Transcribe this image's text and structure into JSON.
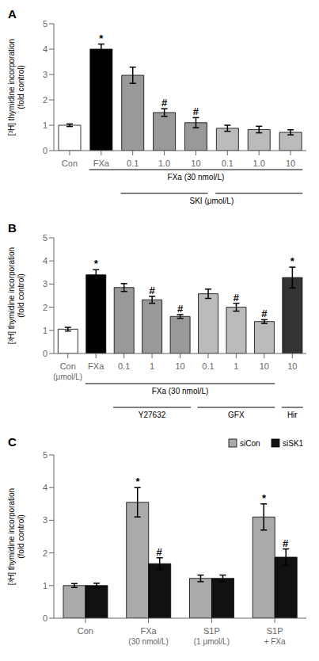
{
  "chart_data": [
    {
      "type": "bar",
      "title": "A",
      "ylabel": "[³H] thymidine incorporation\n(fold control)",
      "categories": [
        "Con",
        "FXa",
        "0.1",
        "1.0",
        "10",
        "0.1",
        "1.0",
        "10"
      ],
      "values": [
        1.0,
        4.0,
        2.97,
        1.5,
        1.1,
        0.88,
        0.83,
        0.72
      ],
      "errors": [
        0.05,
        0.2,
        0.32,
        0.15,
        0.2,
        0.12,
        0.13,
        0.1
      ],
      "colors": [
        "#ffffff",
        "#000000",
        "#999999",
        "#999999",
        "#999999",
        "#bbbbbb",
        "#bbbbbb",
        "#bbbbbb"
      ],
      "ylim": [
        0,
        5
      ],
      "yticks": [
        0,
        1,
        2,
        3,
        4,
        5
      ],
      "annotations": [
        {
          "index": 1,
          "text": "*"
        },
        {
          "index": 3,
          "text": "#"
        },
        {
          "index": 4,
          "text": "#"
        }
      ],
      "bracket_rows": [
        [
          {
            "label": "FXa (30 nmol/L)",
            "spans": [
              [
                1,
                7
              ]
            ]
          }
        ],
        [
          {
            "label": "SKI (μmol/L)",
            "spans": [
              [
                2,
                4
              ],
              [
                5,
                7
              ]
            ]
          }
        ]
      ]
    },
    {
      "type": "bar",
      "title": "B",
      "ylabel": "[³H] thymidine incorporation\n(fold control)",
      "categories": [
        "Con",
        "FXa",
        "0.1",
        "1",
        "10",
        "0.1",
        "1",
        "10",
        "10"
      ],
      "sublabels": [
        "(μmol/L)",
        null,
        null,
        null,
        null,
        null,
        null,
        null,
        null
      ],
      "values": [
        1.05,
        3.4,
        2.85,
        2.32,
        1.6,
        2.58,
        2.0,
        1.38,
        3.28
      ],
      "errors": [
        0.08,
        0.22,
        0.17,
        0.15,
        0.08,
        0.2,
        0.17,
        0.08,
        0.45
      ],
      "colors": [
        "#ffffff",
        "#000000",
        "#999999",
        "#999999",
        "#999999",
        "#bbbbbb",
        "#bbbbbb",
        "#bbbbbb",
        "#333333"
      ],
      "ylim": [
        0,
        5
      ],
      "yticks": [
        0,
        1,
        2,
        3,
        4,
        5
      ],
      "annotations": [
        {
          "index": 1,
          "text": "*"
        },
        {
          "index": 8,
          "text": "*"
        },
        {
          "index": 3,
          "text": "#"
        },
        {
          "index": 4,
          "text": "#"
        },
        {
          "index": 6,
          "text": "#"
        },
        {
          "index": 7,
          "text": "#"
        }
      ],
      "bracket_rows": [
        [
          {
            "label": "FXa (30 nmol/L)",
            "spans": [
              [
                1,
                7
              ]
            ]
          }
        ],
        [
          {
            "label": "Y27632",
            "spans": [
              [
                2,
                4
              ]
            ]
          },
          {
            "label": "GFX",
            "spans": [
              [
                5,
                7
              ]
            ]
          },
          {
            "label": "Hir",
            "spans": [
              [
                8,
                8
              ]
            ]
          }
        ]
      ]
    },
    {
      "type": "bar",
      "title": "C",
      "ylabel": "[³H] thymidine incorporation\n(fold control)",
      "categories": [
        "Con",
        "FXa",
        "S1P",
        "S1P"
      ],
      "sublabels": [
        null,
        "(30 nmol/L)",
        "(1 μmol/L)",
        "+ FXa"
      ],
      "series": [
        {
          "name": "siCon",
          "color": "#aaaaaa",
          "values": [
            1.0,
            3.55,
            1.22,
            3.1
          ],
          "errors": [
            0.06,
            0.45,
            0.1,
            0.4
          ],
          "annotations": [
            {
              "index": 1,
              "text": "*"
            },
            {
              "index": 3,
              "text": "*"
            }
          ]
        },
        {
          "name": "siSK1",
          "color": "#111111",
          "values": [
            1.0,
            1.67,
            1.22,
            1.87
          ],
          "errors": [
            0.07,
            0.18,
            0.1,
            0.25
          ],
          "annotations": [
            {
              "index": 1,
              "text": "#"
            },
            {
              "index": 3,
              "text": "#"
            }
          ]
        }
      ],
      "legend": "upper right",
      "ylim": [
        0,
        5
      ],
      "yticks": [
        0,
        1,
        2,
        3,
        4,
        5
      ]
    }
  ]
}
